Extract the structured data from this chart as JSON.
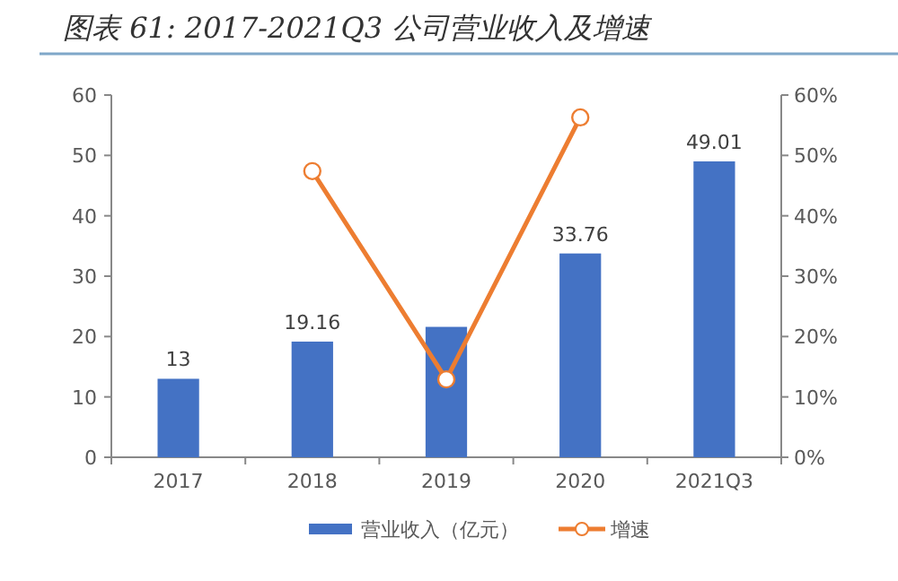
{
  "chart_data": {
    "type": "bar",
    "title": "图表 61: 2017-2021Q3 公司营业收入及增速",
    "categories": [
      "2017",
      "2018",
      "2019",
      "2020",
      "2021Q3"
    ],
    "series": [
      {
        "name": "营业收入（亿元）",
        "color": "#4472c4",
        "values": [
          13,
          19.16,
          21.6,
          33.76,
          49.01
        ],
        "value_labels": [
          "13",
          "19.16",
          null,
          "33.76",
          "49.01"
        ]
      },
      {
        "name": "增速",
        "type": "line",
        "axis": "y2",
        "color": "#ed7d31",
        "marker": "circle",
        "values": [
          null,
          47.4,
          12.9,
          56.3,
          null
        ]
      }
    ],
    "ylim": [
      0,
      60
    ],
    "yticks": [
      0,
      10,
      20,
      30,
      40,
      50,
      60
    ],
    "y2lim": [
      0,
      60
    ],
    "y2ticks": [
      {
        "value": 0,
        "label": "0%"
      },
      {
        "value": 10,
        "label": "10%"
      },
      {
        "value": 20,
        "label": "20%"
      },
      {
        "value": 30,
        "label": "30%"
      },
      {
        "value": 40,
        "label": "40%"
      },
      {
        "value": 50,
        "label": "50%"
      },
      {
        "value": 60,
        "label": "60%"
      }
    ],
    "legend": "bottom",
    "grid": false
  }
}
